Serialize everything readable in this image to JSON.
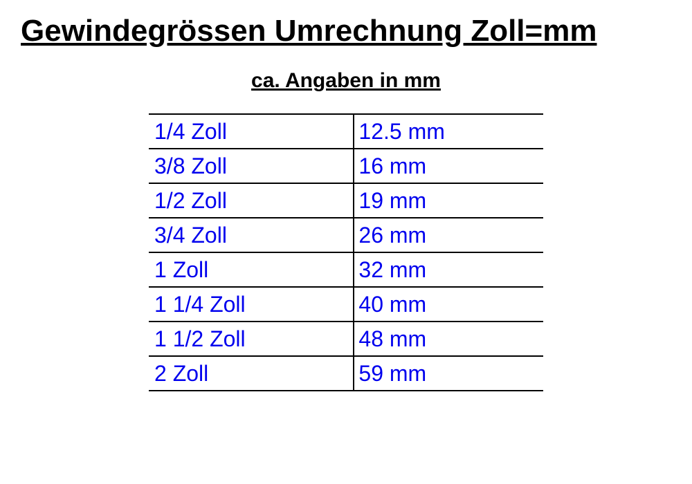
{
  "title": "Gewindegrössen Umrechnung Zoll=mm",
  "subtitle": "ca. Angaben in mm",
  "table": {
    "columns": [
      "zoll",
      "mm"
    ],
    "rows": [
      {
        "zoll": "1/4 Zoll",
        "mm": "12.5 mm"
      },
      {
        "zoll": "3/8 Zoll",
        "mm": "16 mm"
      },
      {
        "zoll": "1/2 Zoll",
        "mm": "19 mm"
      },
      {
        "zoll": "3/4 Zoll",
        "mm": "26 mm"
      },
      {
        "zoll": "1 Zoll",
        "mm": "32 mm"
      },
      {
        "zoll": "1 1/4 Zoll",
        "mm": "40 mm"
      },
      {
        "zoll": "1 1/2 Zoll",
        "mm": "48 mm"
      },
      {
        "zoll": "2 Zoll",
        "mm": "59 mm"
      }
    ],
    "text_color": "#0000ee",
    "border_color": "#000000",
    "cell_fontsize": 32,
    "border_width": 2
  },
  "title_fontsize": 44,
  "subtitle_fontsize": 30,
  "heading_color": "#000000",
  "background_color": "#ffffff"
}
